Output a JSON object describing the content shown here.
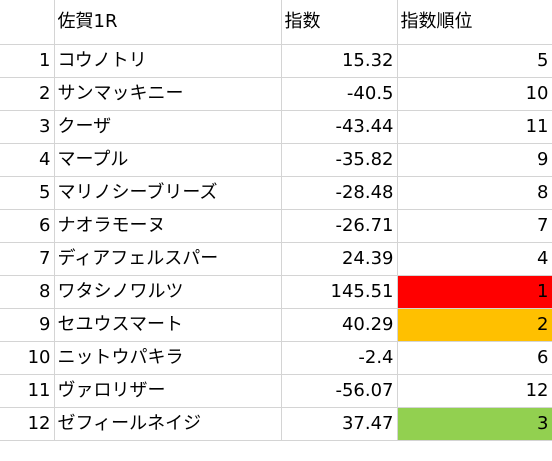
{
  "header": {
    "col_a": "",
    "col_b": "佐賀1R",
    "col_c": "指数",
    "col_d": "指数順位"
  },
  "rows": [
    {
      "no": "1",
      "name": "コウノトリ",
      "index": "15.32",
      "rank": "5",
      "highlight": ""
    },
    {
      "no": "2",
      "name": "サンマッキニー",
      "index": "-40.5",
      "rank": "10",
      "highlight": ""
    },
    {
      "no": "3",
      "name": "クーザ",
      "index": "-43.44",
      "rank": "11",
      "highlight": ""
    },
    {
      "no": "4",
      "name": "マープル",
      "index": "-35.82",
      "rank": "9",
      "highlight": ""
    },
    {
      "no": "5",
      "name": "マリノシーブリーズ",
      "index": "-28.48",
      "rank": "8",
      "highlight": ""
    },
    {
      "no": "6",
      "name": "ナオラモーヌ",
      "index": "-26.71",
      "rank": "7",
      "highlight": ""
    },
    {
      "no": "7",
      "name": "ディアフェルスパー",
      "index": "24.39",
      "rank": "4",
      "highlight": ""
    },
    {
      "no": "8",
      "name": "ワタシノワルツ",
      "index": "145.51",
      "rank": "1",
      "highlight": "#ff0000"
    },
    {
      "no": "9",
      "name": "セユウスマート",
      "index": "40.29",
      "rank": "2",
      "highlight": "#ffc000"
    },
    {
      "no": "10",
      "name": "ニットウパキラ",
      "index": "-2.4",
      "rank": "6",
      "highlight": ""
    },
    {
      "no": "11",
      "name": "ヴァロリザー",
      "index": "-56.07",
      "rank": "12",
      "highlight": ""
    },
    {
      "no": "12",
      "name": "ゼフィールネイジ",
      "index": "37.47",
      "rank": "3",
      "highlight": "#92d050"
    }
  ]
}
